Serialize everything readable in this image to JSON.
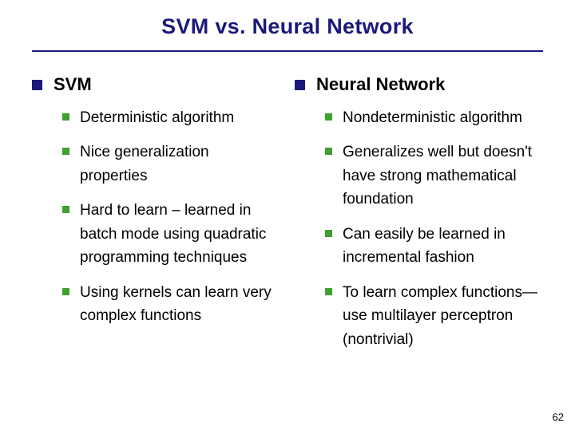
{
  "title": "SVM vs. Neural Network",
  "columns": [
    {
      "heading": "SVM",
      "items": [
        "Deterministic algorithm",
        "Nice generalization properties",
        "Hard to learn – learned in batch mode using quadratic programming techniques",
        "Using kernels can learn very complex functions"
      ]
    },
    {
      "heading": "Neural Network",
      "items": [
        "Nondeterministic algorithm",
        "Generalizes well but doesn't have strong mathematical foundation",
        "Can easily be learned in incremental fashion",
        "To learn complex functions—use multilayer perceptron (nontrivial)"
      ]
    }
  ],
  "page_number": "62",
  "colors": {
    "title_color": "#1a1a7a",
    "l1_bullet": "#1a1a7a",
    "l2_bullet": "#3fa030",
    "background": "#ffffff"
  }
}
